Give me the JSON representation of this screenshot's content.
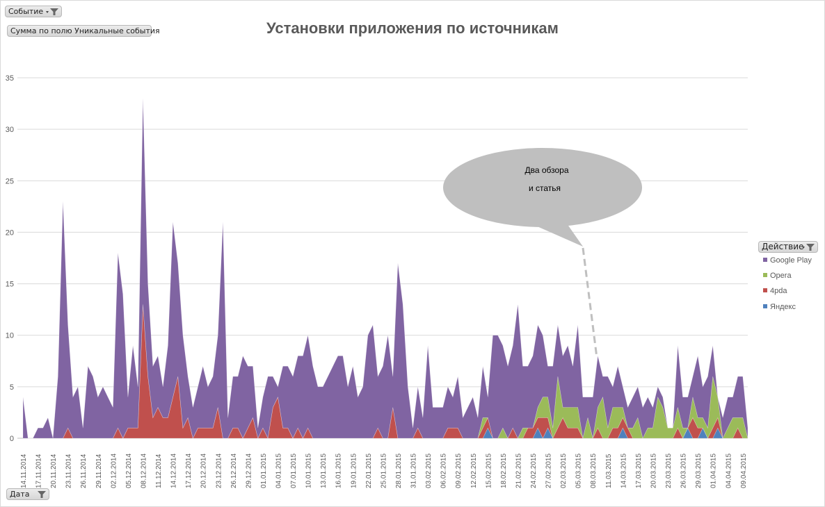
{
  "filters": {
    "event_button": "Событие",
    "value_field_button": "Сумма по полю Уникальные события",
    "axis_field_button": "Дата",
    "legend_field_button": "Действие"
  },
  "callout": {
    "line1": "Два обзора",
    "line2": "и статья"
  },
  "colors": {
    "Google Play": "#8064a2",
    "Opera": "#9bbb59",
    "4pda": "#c0504d",
    "Яндекс": "#4f81bd"
  },
  "chart_data": {
    "type": "area",
    "stacked": true,
    "title": "Установки приложения по источникам",
    "xlabel": "",
    "ylabel": "",
    "ylim": [
      0,
      35
    ],
    "yticks": [
      0,
      5,
      10,
      15,
      20,
      25,
      30,
      35
    ],
    "grid": true,
    "legend_placement": "right",
    "x_tick_labels": [
      "14.11.2014",
      "17.11.2014",
      "20.11.2014",
      "23.11.2014",
      "26.11.2014",
      "29.11.2014",
      "02.12.2014",
      "05.12.2014",
      "08.12.2014",
      "11.12.2014",
      "14.12.2014",
      "17.12.2014",
      "20.12.2014",
      "23.12.2014",
      "26.12.2014",
      "29.12.2014",
      "01.01.2015",
      "04.01.2015",
      "07.01.2015",
      "10.01.2015",
      "13.01.2015",
      "16.01.2015",
      "19.01.2015",
      "22.01.2015",
      "25.01.2015",
      "28.01.2015",
      "31.01.2015",
      "03.02.2015",
      "06.02.2015",
      "09.02.2015",
      "12.02.2015",
      "15.02.2015",
      "18.02.2015",
      "21.02.2015",
      "24.02.2015",
      "27.02.2015",
      "02.03.2015",
      "05.03.2015",
      "08.03.2015",
      "11.03.2015",
      "14.03.2015",
      "17.03.2015",
      "20.03.2015",
      "23.03.2015",
      "26.03.2015",
      "29.03.2015",
      "01.04.2015",
      "04.04.2015",
      "09.04.2015"
    ],
    "series": [
      {
        "name": "Яндекс",
        "values": [
          0,
          0,
          0,
          0,
          0,
          0,
          0,
          0,
          0,
          0,
          0,
          0,
          0,
          0,
          0,
          0,
          0,
          0,
          0,
          0,
          0,
          0,
          0,
          0,
          0,
          0,
          0,
          0,
          0,
          0,
          0,
          0,
          0,
          0,
          0,
          0,
          0,
          0,
          0,
          0,
          0,
          0,
          0,
          0,
          0,
          0,
          0,
          0,
          0,
          0,
          0,
          0,
          0,
          0,
          0,
          0,
          0,
          0,
          0,
          0,
          0,
          0,
          0,
          0,
          0,
          0,
          0,
          0,
          0,
          0,
          0,
          0,
          0,
          0,
          0,
          0,
          0,
          0,
          0,
          0,
          0,
          0,
          0,
          0,
          0,
          0,
          0,
          0,
          0,
          0,
          0,
          0,
          0,
          1,
          0,
          0,
          0,
          0,
          0,
          0,
          0,
          0,
          0,
          1,
          0,
          1,
          0,
          0,
          0,
          0,
          0,
          0,
          0,
          0,
          0,
          0,
          0,
          0,
          0,
          0,
          1,
          0,
          0,
          0,
          0,
          0,
          0,
          0,
          0,
          0,
          0,
          0,
          0,
          1,
          0,
          0,
          1,
          0,
          0,
          1,
          0,
          0,
          0,
          0,
          0,
          0
        ]
      },
      {
        "name": "4pda",
        "values": [
          0,
          0,
          0,
          0,
          0,
          0,
          0,
          0,
          0,
          1,
          0,
          0,
          0,
          0,
          0,
          0,
          0,
          0,
          0,
          1,
          0,
          1,
          1,
          1,
          13,
          6,
          2,
          3,
          2,
          2,
          4,
          6,
          1,
          2,
          0,
          1,
          1,
          1,
          1,
          3,
          0,
          0,
          1,
          1,
          0,
          1,
          2,
          0,
          1,
          0,
          3,
          4,
          1,
          1,
          0,
          1,
          0,
          1,
          0,
          0,
          0,
          0,
          0,
          0,
          0,
          0,
          0,
          0,
          0,
          0,
          0,
          1,
          0,
          0,
          3,
          0,
          0,
          0,
          0,
          1,
          0,
          0,
          0,
          0,
          0,
          1,
          1,
          1,
          0,
          0,
          0,
          0,
          1,
          1,
          0,
          0,
          0,
          0,
          1,
          0,
          0,
          1,
          1,
          1,
          2,
          1,
          0,
          1,
          2,
          1,
          1,
          1,
          0,
          0,
          0,
          1,
          0,
          0,
          1,
          1,
          1,
          1,
          0,
          0,
          0,
          0,
          0,
          0,
          0,
          0,
          0,
          1,
          0,
          0,
          2,
          1,
          0,
          0,
          1,
          1,
          0,
          0,
          0,
          1,
          0,
          0
        ]
      },
      {
        "name": "Opera",
        "values": [
          0,
          0,
          0,
          0,
          0,
          0,
          0,
          0,
          0,
          0,
          0,
          0,
          0,
          0,
          0,
          0,
          0,
          0,
          0,
          0,
          0,
          0,
          0,
          0,
          0,
          0,
          0,
          0,
          0,
          0,
          0,
          0,
          0,
          0,
          0,
          0,
          0,
          0,
          0,
          0,
          0,
          0,
          0,
          0,
          0,
          0,
          0,
          0,
          0,
          0,
          0,
          0,
          0,
          0,
          0,
          0,
          0,
          0,
          0,
          0,
          0,
          0,
          0,
          0,
          0,
          0,
          0,
          0,
          0,
          0,
          0,
          0,
          0,
          0,
          0,
          0,
          0,
          0,
          0,
          0,
          0,
          0,
          0,
          0,
          0,
          0,
          0,
          0,
          0,
          0,
          0,
          0,
          1,
          0,
          0,
          0,
          1,
          0,
          0,
          0,
          1,
          0,
          0,
          1,
          2,
          2,
          1,
          5,
          1,
          2,
          2,
          2,
          0,
          2,
          0,
          2,
          4,
          1,
          2,
          2,
          1,
          0,
          1,
          2,
          0,
          1,
          1,
          4,
          3,
          1,
          1,
          2,
          1,
          0,
          2,
          1,
          1,
          1,
          5,
          2,
          0,
          1,
          2,
          1,
          2,
          0
        ]
      },
      {
        "name": "Google Play",
        "values": [
          4,
          0,
          0,
          1,
          1,
          2,
          0,
          6,
          23,
          10,
          4,
          5,
          1,
          7,
          6,
          4,
          5,
          4,
          3,
          17,
          14,
          3,
          8,
          4,
          20,
          9,
          5,
          5,
          3,
          7,
          17,
          11,
          9,
          4,
          3,
          4,
          6,
          4,
          5,
          7,
          21,
          2,
          5,
          5,
          8,
          6,
          5,
          1,
          3,
          6,
          3,
          1,
          6,
          6,
          6,
          7,
          8,
          9,
          7,
          5,
          5,
          6,
          7,
          8,
          8,
          5,
          7,
          4,
          5,
          10,
          11,
          5,
          7,
          10,
          3,
          17,
          13,
          5,
          1,
          4,
          2,
          9,
          3,
          3,
          3,
          4,
          3,
          5,
          2,
          3,
          4,
          2,
          5,
          2,
          10,
          10,
          8,
          7,
          8,
          13,
          6,
          6,
          7,
          8,
          6,
          3,
          6,
          5,
          5,
          6,
          4,
          8,
          4,
          2,
          4,
          5,
          2,
          5,
          2,
          4,
          2,
          2,
          3,
          3,
          3,
          3,
          2,
          1,
          1,
          0,
          0,
          6,
          3,
          3,
          2,
          6,
          3,
          5,
          3,
          0,
          2,
          3,
          2,
          4,
          4,
          1
        ]
      }
    ]
  }
}
